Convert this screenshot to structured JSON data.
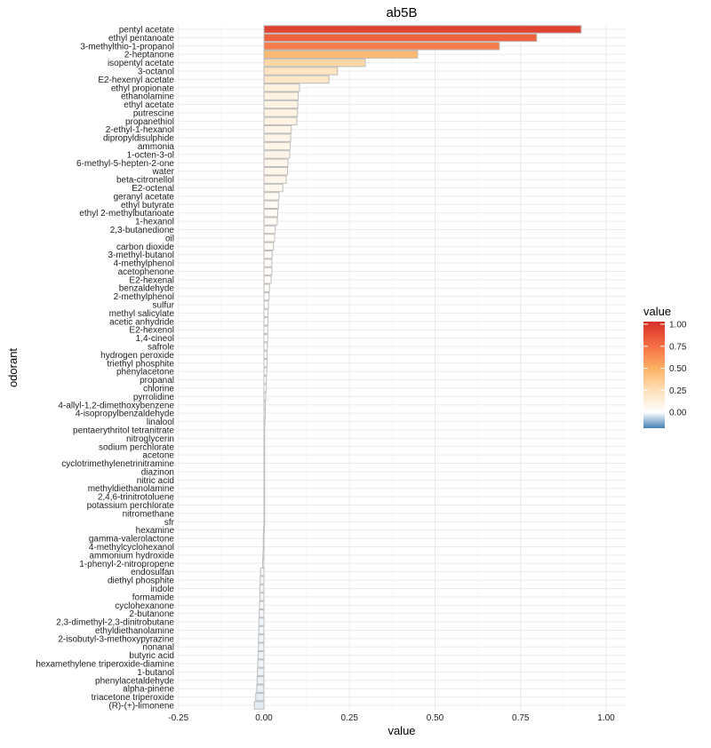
{
  "chart_data": {
    "type": "bar",
    "orientation": "horizontal",
    "title": "ab5B",
    "xlabel": "value",
    "ylabel": "odorant",
    "xlim": [
      -0.25,
      1.05
    ],
    "xticks": [
      -0.25,
      0.0,
      0.25,
      0.5,
      0.75,
      1.0
    ],
    "xtick_labels": [
      "-0.25",
      "0.00",
      "0.25",
      "0.50",
      "0.75",
      "1.00"
    ],
    "grid": true,
    "legend": {
      "title": "value",
      "position": "right",
      "ticks": [
        "1.00",
        "0.75",
        "0.50",
        "0.25",
        "0.00"
      ],
      "tick_values": [
        1.0,
        0.75,
        0.5,
        0.25,
        0.0
      ],
      "range": [
        -0.18,
        1.03
      ]
    },
    "colors": {
      "neg": "#4682b4",
      "zero": "#ffffff",
      "low": "#fee0b6",
      "mid": "#fdae61",
      "high": "#f46d43",
      "max": "#d73027",
      "outline": "#bdbdbd"
    },
    "categories": [
      "pentyl acetate",
      "ethyl pentanoate",
      "3-methylthio-1-propanol",
      "2-heptanone",
      "isopentyl acetate",
      "3-octanol",
      "E2-hexenyl acetate",
      "ethyl propionate",
      "ethanolamine",
      "ethyl acetate",
      "putrescine",
      "propanethiol",
      "2-ethyl-1-hexanol",
      "dipropyldisulphide",
      "ammonia",
      "1-octen-3-ol",
      "6-methyl-5-hepten-2-one",
      "water",
      "beta-citronellol",
      "E2-octenal",
      "geranyl acetate",
      "ethyl butyrate",
      "ethyl 2-methylbutanoate",
      "1-hexanol",
      "2,3-butanedione",
      "oil",
      "carbon dioxide",
      "3-methyl-butanol",
      "4-methylphenol",
      "acetophenone",
      "E2-hexenal",
      "benzaldehyde",
      "2-methylphenol",
      "sulfur",
      "methyl salicylate",
      "acetic anhydride",
      "E2-hexenol",
      "1,4-cineol",
      "safrole",
      "hydrogen peroxide",
      "triethyl phosphite",
      "phenylacetone",
      "propanal",
      "chlorine",
      "pyrrolidine",
      "4-allyl-1,2-dimethoxybenzene",
      "4-isopropylbenzaldehyde",
      "linalool",
      "pentaerythritol tetranitrate",
      "nitroglycerin",
      "sodium perchlorate",
      "acetone",
      "cyclotrimethylenetrinitramine",
      "diazinon",
      "nitric acid",
      "methyldiethanolamine",
      "2,4,6-trinitrotoluene",
      "potassium perchlorate",
      "nitromethane",
      "sfr",
      "hexamine",
      "gamma-valerolactone",
      "4-methylcyclohexanol",
      "ammonium hydroxide",
      "1-phenyl-2-nitropropene",
      "endosulfan",
      "diethyl phosphite",
      "indole",
      "formamide",
      "cyclohexanone",
      "2-butanone",
      "2,3-dimethyl-2,3-dinitrobutane",
      "ethyldiethanolamine",
      "2-isobutyl-3-methoxypyrazine",
      "nonanal",
      "butyric acid",
      "hexamethylene triperoxide-diamine",
      "1-butanol",
      "phenylacetaldehyde",
      "alpha-pinene",
      "triacetone triperoxide",
      "(R)-(+)-limonene"
    ],
    "values": [
      0.927,
      0.797,
      0.688,
      0.449,
      0.296,
      0.215,
      0.19,
      0.104,
      0.1,
      0.099,
      0.098,
      0.096,
      0.08,
      0.078,
      0.077,
      0.075,
      0.07,
      0.069,
      0.065,
      0.055,
      0.044,
      0.042,
      0.04,
      0.039,
      0.033,
      0.031,
      0.028,
      0.024,
      0.023,
      0.023,
      0.021,
      0.016,
      0.015,
      0.013,
      0.012,
      0.012,
      0.011,
      0.011,
      0.01,
      0.009,
      0.009,
      0.008,
      0.007,
      0.007,
      0.005,
      0.004,
      0.004,
      0.003,
      0.002,
      0.002,
      0.001,
      0.001,
      0.001,
      0.001,
      0.001,
      0.0005,
      0.0005,
      0.0005,
      0.0003,
      0.0001,
      -0.001,
      -0.002,
      -0.002,
      -0.003,
      -0.004,
      -0.01,
      -0.011,
      -0.012,
      -0.012,
      -0.013,
      -0.014,
      -0.015,
      -0.015,
      -0.016,
      -0.016,
      -0.017,
      -0.018,
      -0.019,
      -0.02,
      -0.021,
      -0.024,
      -0.028
    ]
  }
}
